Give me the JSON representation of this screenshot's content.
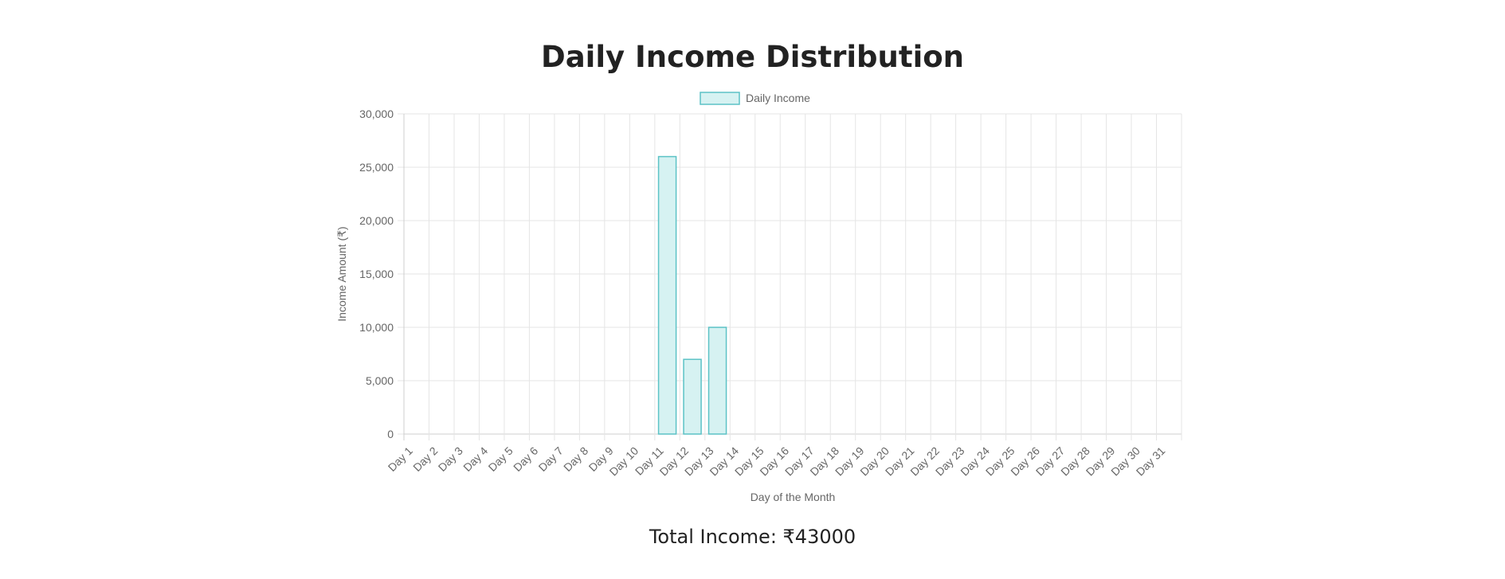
{
  "page": {
    "title": "Daily Income Distribution",
    "total_label": "Total Income: ₹43000"
  },
  "colors": {
    "bar_fill": "#d6f2f2",
    "bar_stroke": "#5cc2c6",
    "grid": "#e5e5e5",
    "axis": "#cfcfcf",
    "tick_text": "#666666"
  },
  "chart_data": {
    "type": "bar",
    "title": "",
    "xlabel": "Day of the Month",
    "ylabel": "Income Amount (₹)",
    "legend": "top",
    "grid": true,
    "ylim": [
      0,
      30000
    ],
    "yticks": [
      0,
      5000,
      10000,
      15000,
      20000,
      25000,
      30000
    ],
    "ytick_labels": [
      "0",
      "5,000",
      "10,000",
      "15,000",
      "20,000",
      "25,000",
      "30,000"
    ],
    "categories": [
      "Day 1",
      "Day 2",
      "Day 3",
      "Day 4",
      "Day 5",
      "Day 6",
      "Day 7",
      "Day 8",
      "Day 9",
      "Day 10",
      "Day 11",
      "Day 12",
      "Day 13",
      "Day 14",
      "Day 15",
      "Day 16",
      "Day 17",
      "Day 18",
      "Day 19",
      "Day 20",
      "Day 21",
      "Day 22",
      "Day 23",
      "Day 24",
      "Day 25",
      "Day 26",
      "Day 27",
      "Day 28",
      "Day 29",
      "Day 30",
      "Day 31"
    ],
    "series": [
      {
        "name": "Daily Income",
        "values": [
          0,
          0,
          0,
          0,
          0,
          0,
          0,
          0,
          0,
          0,
          26000,
          7000,
          10000,
          0,
          0,
          0,
          0,
          0,
          0,
          0,
          0,
          0,
          0,
          0,
          0,
          0,
          0,
          0,
          0,
          0,
          0
        ]
      }
    ]
  }
}
